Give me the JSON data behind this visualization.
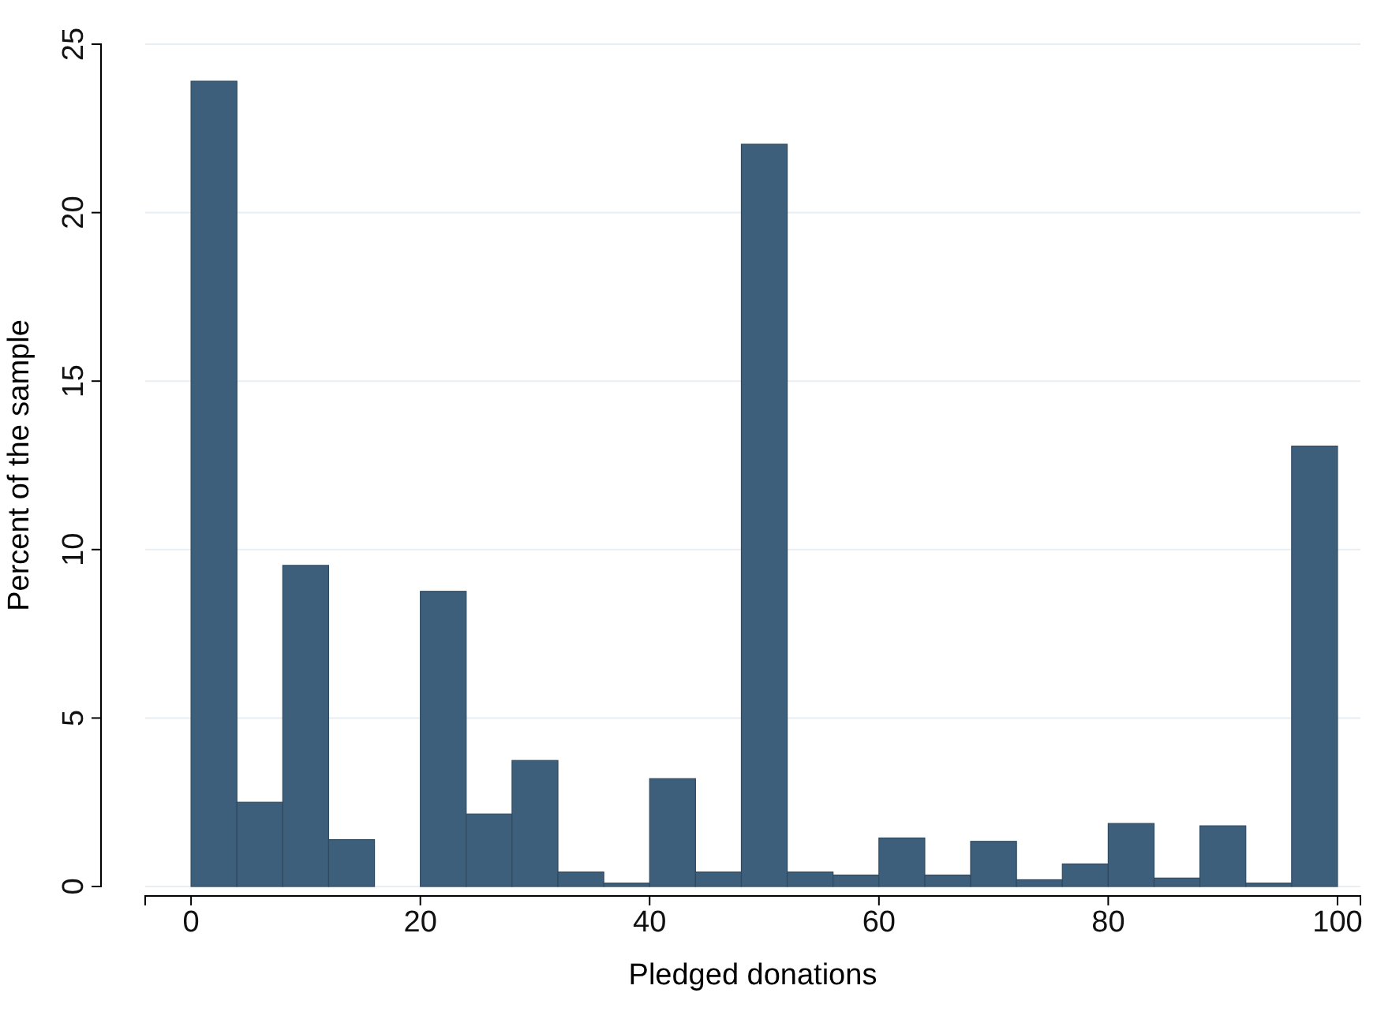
{
  "chart_data": {
    "type": "histogram",
    "xlabel": "Pledged donations",
    "ylabel": "Percent of the sample",
    "bins": [
      0,
      4,
      8,
      12,
      16,
      20,
      24,
      28,
      32,
      36,
      40,
      44,
      48,
      52,
      56,
      60,
      64,
      68,
      72,
      76,
      80,
      84,
      88,
      92,
      96,
      100
    ],
    "values": [
      23.9,
      2.5,
      9.53,
      1.39,
      0,
      8.76,
      2.15,
      3.74,
      0.43,
      0.1,
      3.2,
      0.43,
      22.03,
      0.43,
      0.34,
      1.44,
      0.34,
      1.34,
      0.2,
      0.67,
      1.87,
      0.25,
      1.8,
      0.1,
      13.07
    ],
    "color": "#3e5f7b",
    "xlim": [
      -4,
      102
    ],
    "ylim": [
      0,
      25
    ],
    "xticks": [
      0,
      20,
      40,
      60,
      80,
      100
    ],
    "yticks": [
      0,
      5,
      10,
      15,
      20,
      25
    ],
    "grid": "y"
  }
}
